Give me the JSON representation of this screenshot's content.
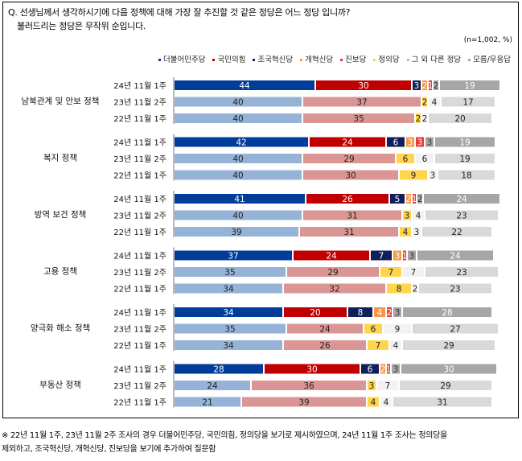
{
  "question_line1": "Q. 선생님께서 생각하시기에 다음 정책에 대해 가장 잘 추진할 것 같은 정당은 어느 정당 입니까?",
  "question_line2": "불러드리는 정당은 무작위 순입니다.",
  "unit": "(n=1,002, %)",
  "footnote_line1": "※ 22년 11월 1주, 23년 11월 2주 조사의 경우 더불어민주당, 국민의힘, 정의당을 보기로 제시하였으며, 24년 11월 1주 조사는 정의당을",
  "footnote_line2": "제외하고, 조국혁신당, 개혁신당, 진보당을 보기에 추가하여 질문함",
  "legend": [
    {
      "label": "더불어민주당",
      "color": "#003d9a"
    },
    {
      "label": "국민의힘",
      "color": "#c00000"
    },
    {
      "label": "조국혁신당",
      "color": "#0f1f5a"
    },
    {
      "label": "개혁신당",
      "color": "#f79646"
    },
    {
      "label": "진보당",
      "color": "#e8393a"
    },
    {
      "label": "정의당",
      "color": "#ffd54f"
    },
    {
      "label": "그 외 다른 정당",
      "color": "#bfbfbf"
    },
    {
      "label": "모름/무응답",
      "color": "#a6a6a6"
    }
  ],
  "chart_data": {
    "type": "bar",
    "orientation": "horizontal-stacked",
    "xlim": [
      0,
      100
    ],
    "series_2024": [
      "더불어민주당",
      "국민의힘",
      "조국혁신당",
      "개혁신당",
      "진보당",
      "그 외 다른 정당",
      "모름/무응답"
    ],
    "series_2022_2023": [
      "더불어민주당",
      "국민의힘",
      "정의당",
      "그 외 다른 정당",
      "모름/무응답"
    ],
    "groups": [
      {
        "category": "남북관계 및 안보 정책",
        "rows": [
          {
            "label": "24년 11월 1주",
            "values": [
              44,
              30,
              3,
              2,
              1,
              2,
              19
            ]
          },
          {
            "label": "23년 11월 2주",
            "values": [
              40,
              37,
              2,
              4,
              17
            ]
          },
          {
            "label": "22년 11월 1주",
            "values": [
              40,
              35,
              2,
              2,
              20
            ]
          }
        ]
      },
      {
        "category": "복지 정책",
        "rows": [
          {
            "label": "24년 11월 1주",
            "values": [
              42,
              24,
              6,
              3,
              3,
              3,
              19
            ]
          },
          {
            "label": "23년 11월 2주",
            "values": [
              40,
              29,
              6,
              6,
              19
            ]
          },
          {
            "label": "22년 11월 1주",
            "values": [
              40,
              30,
              9,
              3,
              18
            ]
          }
        ]
      },
      {
        "category": "방역 보건 정책",
        "rows": [
          {
            "label": "24년 11월 1주",
            "values": [
              41,
              26,
              5,
              2,
              1,
              2,
              24
            ]
          },
          {
            "label": "23년 11월 2주",
            "values": [
              40,
              31,
              3,
              4,
              23
            ]
          },
          {
            "label": "22년 11월 1주",
            "values": [
              39,
              31,
              4,
              3,
              22
            ]
          }
        ]
      },
      {
        "category": "고용 정책",
        "rows": [
          {
            "label": "24년 11월 1주",
            "values": [
              37,
              24,
              7,
              3,
              1,
              3,
              24
            ]
          },
          {
            "label": "23년 11월 2주",
            "values": [
              35,
              29,
              7,
              7,
              23
            ]
          },
          {
            "label": "22년 11월 1주",
            "values": [
              34,
              32,
              8,
              2,
              23
            ]
          }
        ]
      },
      {
        "category": "양극화 해소 정책",
        "rows": [
          {
            "label": "24년 11월 1주",
            "values": [
              34,
              20,
              8,
              4,
              2,
              3,
              28
            ]
          },
          {
            "label": "23년 11월 2주",
            "values": [
              35,
              24,
              6,
              9,
              27
            ]
          },
          {
            "label": "22년 11월 1주",
            "values": [
              34,
              26,
              7,
              4,
              29
            ]
          }
        ]
      },
      {
        "category": "부동산 정책",
        "rows": [
          {
            "label": "24년 11월 1주",
            "values": [
              28,
              30,
              6,
              2,
              1,
              3,
              30
            ]
          },
          {
            "label": "23년 11월 2주",
            "values": [
              24,
              36,
              3,
              7,
              29
            ]
          },
          {
            "label": "22년 11월 1주",
            "values": [
              21,
              39,
              4,
              4,
              31
            ]
          }
        ]
      }
    ],
    "colors_2024": [
      "#003d9a",
      "#c00000",
      "#0f1f5a",
      "#f79646",
      "#e8393a",
      "#a6a6a6",
      "#a6a6a6"
    ],
    "label_colors_2024": [
      "#fff",
      "#fff",
      "#fff",
      "#fff",
      "#fff",
      "#333",
      "#fff"
    ],
    "colors_2022_2023": [
      "#95b3d7",
      "#da9694",
      "#ffd54f",
      "#f2f2f2",
      "#d9d9d9"
    ]
  }
}
